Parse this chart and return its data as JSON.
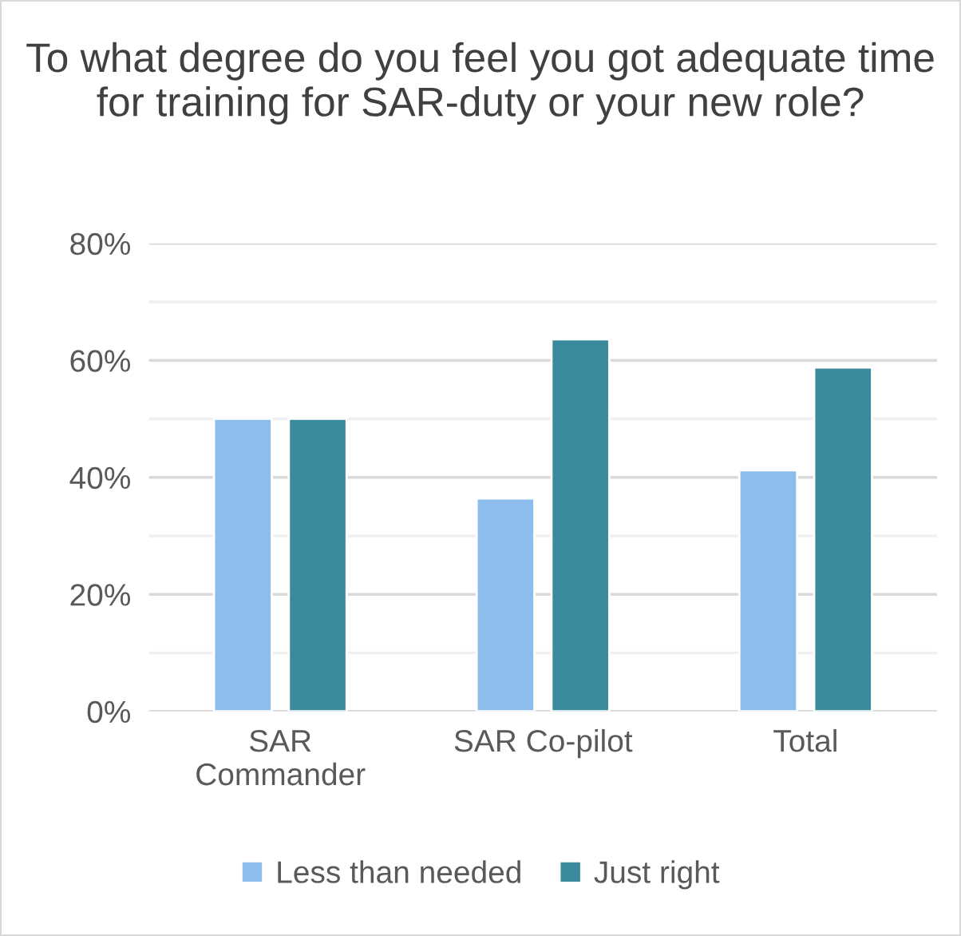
{
  "chart_data": {
    "type": "bar",
    "title": "To what degree do you feel you got adequate time for training for SAR-duty or your new role?",
    "categories": [
      "SAR\nCommander",
      "SAR Co-pilot",
      "Total"
    ],
    "series": [
      {
        "name": "Less than needed",
        "color": "#8dbdec",
        "values": [
          50,
          36.4,
          41.2
        ]
      },
      {
        "name": "Just right",
        "color": "#3a8a9c",
        "values": [
          50,
          63.6,
          58.8
        ]
      }
    ],
    "ylim": [
      0,
      80
    ],
    "yticks": [
      {
        "value": 0,
        "label": "0%"
      },
      {
        "value": 10,
        "label": null
      },
      {
        "value": 20,
        "label": "20%"
      },
      {
        "value": 30,
        "label": null
      },
      {
        "value": 40,
        "label": "40%"
      },
      {
        "value": 50,
        "label": null
      },
      {
        "value": 60,
        "label": "60%"
      },
      {
        "value": 70,
        "label": null
      },
      {
        "value": 80,
        "label": "80%"
      }
    ],
    "grid": "y",
    "legend": "bottom"
  }
}
